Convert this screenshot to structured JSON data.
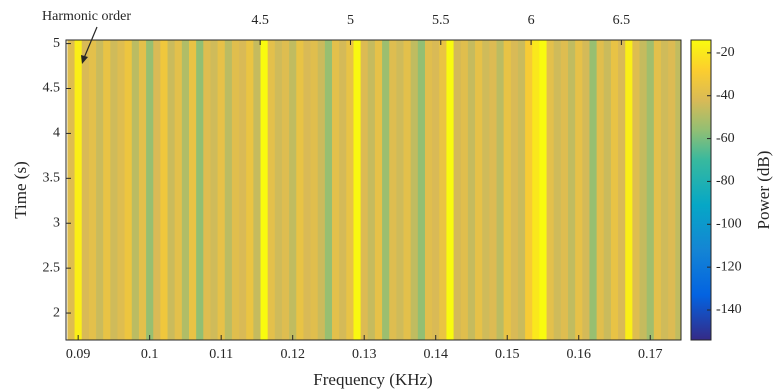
{
  "chart_data": {
    "type": "spectrogram",
    "xlabel": "Frequency (KHz)",
    "ylabel": "Time (s)",
    "colorbar_label": "Power (dB)",
    "x2label": "Harmonic order",
    "x": [
      0.089,
      0.09,
      0.091,
      0.092,
      0.093,
      0.094,
      0.095,
      0.096,
      0.097,
      0.098,
      0.099,
      0.1,
      0.101,
      0.102,
      0.103,
      0.104,
      0.105,
      0.106,
      0.107,
      0.108,
      0.109,
      0.11,
      0.111,
      0.112,
      0.113,
      0.114,
      0.115,
      0.116,
      0.117,
      0.118,
      0.119,
      0.12,
      0.121,
      0.122,
      0.123,
      0.124,
      0.125,
      0.126,
      0.127,
      0.128,
      0.129,
      0.13,
      0.131,
      0.132,
      0.133,
      0.134,
      0.135,
      0.136,
      0.137,
      0.138,
      0.139,
      0.14,
      0.141,
      0.142,
      0.143,
      0.144,
      0.145,
      0.146,
      0.147,
      0.148,
      0.149,
      0.15,
      0.151,
      0.152,
      0.153,
      0.154,
      0.155,
      0.156,
      0.157,
      0.158,
      0.159,
      0.16,
      0.161,
      0.162,
      0.163,
      0.164,
      0.165,
      0.166,
      0.167,
      0.168,
      0.169,
      0.17,
      0.171,
      0.172,
      0.173,
      0.174
    ],
    "values": [
      -40,
      -18,
      -42,
      -38,
      -45,
      -36,
      -44,
      -40,
      -34,
      -48,
      -38,
      -55,
      -42,
      -33,
      -45,
      -38,
      -50,
      -36,
      -56,
      -40,
      -44,
      -37,
      -48,
      -39,
      -42,
      -35,
      -46,
      -12,
      -38,
      -44,
      -40,
      -47,
      -36,
      -42,
      -39,
      -45,
      -55,
      -38,
      -43,
      -36,
      -15,
      -41,
      -46,
      -37,
      -54,
      -40,
      -44,
      -38,
      -47,
      -56,
      -39,
      -42,
      -35,
      -14,
      -43,
      -39,
      -46,
      -37,
      -44,
      -41,
      -48,
      -36,
      -42,
      -45,
      -30,
      -20,
      -13,
      -38,
      -44,
      -40,
      -47,
      -37,
      -43,
      -55,
      -39,
      -45,
      -36,
      -42,
      -18,
      -40,
      -46,
      -53,
      -38,
      -44,
      -41,
      -47
    ],
    "xlim": [
      0.0883,
      0.1743
    ],
    "xticks": [
      0.09,
      0.1,
      0.11,
      0.12,
      0.13,
      0.14,
      0.15,
      0.16,
      0.17
    ],
    "ylim": [
      1.7,
      5.04
    ],
    "yticks": [
      2,
      2.5,
      3,
      3.5,
      4,
      4.5,
      5
    ],
    "x2lim": [
      3.425,
      6.83
    ],
    "x2ticks": [
      4.5,
      5,
      5.5,
      6,
      6.5
    ],
    "clim": [
      -154,
      -14
    ],
    "cticks": [
      -20,
      -40,
      -60,
      -80,
      -100,
      -120,
      -140
    ]
  }
}
